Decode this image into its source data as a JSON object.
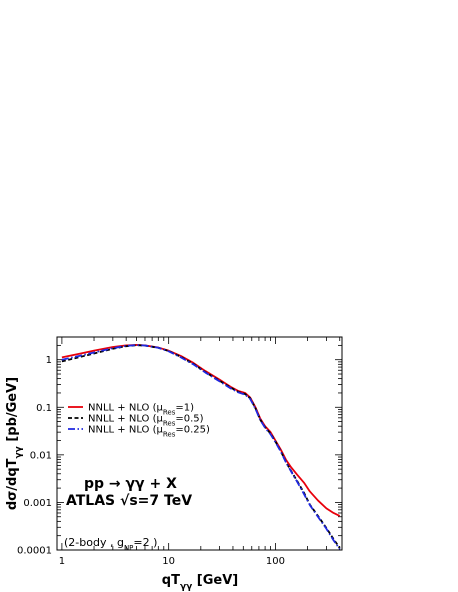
{
  "chart_data": {
    "type": "line",
    "xlabel": "qT<sub>γγ</sub> [GeV]",
    "ylabel": "dσ/dqT<sub>γγ</sub> [pb/GeV]",
    "xscale": "log",
    "yscale": "log",
    "xlim": [
      0.9,
      420
    ],
    "ylim": [
      0.0001,
      3
    ],
    "x_ticks": [
      "1",
      "10",
      "100"
    ],
    "y_ticks": [
      "1",
      "0.1",
      "0.01",
      "0.001",
      "0.0001"
    ],
    "legend_position": "left",
    "annotations": {
      "process": "pp → γγ + X",
      "experiment": "ATLAS  √s=7 TeV",
      "note": "(2-body , g<sub>NP</sub>=2 )"
    },
    "series": [
      {
        "name": "NNLL + NLO (μ<sub>Res</sub>=1)",
        "color": "#e8000b",
        "dash": "solid",
        "points": [
          [
            1,
            1.12
          ],
          [
            1.5,
            1.35
          ],
          [
            2,
            1.55
          ],
          [
            3,
            1.85
          ],
          [
            4,
            2.0
          ],
          [
            5,
            2.05
          ],
          [
            6,
            2.0
          ],
          [
            8,
            1.8
          ],
          [
            10,
            1.55
          ],
          [
            13,
            1.2
          ],
          [
            17,
            0.86
          ],
          [
            22,
            0.58
          ],
          [
            30,
            0.38
          ],
          [
            38,
            0.27
          ],
          [
            45,
            0.22
          ],
          [
            52,
            0.2
          ],
          [
            58,
            0.16
          ],
          [
            65,
            0.1
          ],
          [
            72,
            0.058
          ],
          [
            80,
            0.04
          ],
          [
            90,
            0.03
          ],
          [
            100,
            0.02
          ],
          [
            112,
            0.013
          ],
          [
            125,
            0.008
          ],
          [
            140,
            0.0055
          ],
          [
            160,
            0.0038
          ],
          [
            185,
            0.0026
          ],
          [
            210,
            0.0017
          ],
          [
            250,
            0.0011
          ],
          [
            300,
            0.00075
          ],
          [
            350,
            0.0006
          ],
          [
            400,
            0.00052
          ]
        ]
      },
      {
        "name": "NNLL + NLO (μ<sub>Res</sub>=0.5)",
        "color": "#000000",
        "dash": "dashed",
        "points": [
          [
            1,
            0.92
          ],
          [
            1.5,
            1.15
          ],
          [
            2,
            1.35
          ],
          [
            3,
            1.7
          ],
          [
            4,
            1.92
          ],
          [
            5,
            2.02
          ],
          [
            6,
            1.98
          ],
          [
            8,
            1.78
          ],
          [
            10,
            1.52
          ],
          [
            13,
            1.15
          ],
          [
            17,
            0.82
          ],
          [
            22,
            0.55
          ],
          [
            30,
            0.36
          ],
          [
            38,
            0.26
          ],
          [
            45,
            0.21
          ],
          [
            52,
            0.19
          ],
          [
            58,
            0.155
          ],
          [
            65,
            0.095
          ],
          [
            72,
            0.055
          ],
          [
            80,
            0.038
          ],
          [
            90,
            0.028
          ],
          [
            100,
            0.019
          ],
          [
            112,
            0.012
          ],
          [
            125,
            0.0072
          ],
          [
            140,
            0.0046
          ],
          [
            160,
            0.0028
          ],
          [
            185,
            0.0016
          ],
          [
            210,
            0.0009
          ],
          [
            250,
            0.00052
          ],
          [
            300,
            0.00029
          ],
          [
            350,
            0.00017
          ],
          [
            400,
            0.00011
          ]
        ]
      },
      {
        "name": "NNLL + NLO (μ<sub>Res</sub>=0.25)",
        "color": "#1f28e0",
        "dash": "dashdot",
        "points": [
          [
            1,
            1.0
          ],
          [
            1.5,
            1.22
          ],
          [
            2,
            1.42
          ],
          [
            3,
            1.75
          ],
          [
            4,
            1.95
          ],
          [
            5,
            2.03
          ],
          [
            6,
            1.99
          ],
          [
            8,
            1.78
          ],
          [
            10,
            1.5
          ],
          [
            13,
            1.12
          ],
          [
            17,
            0.8
          ],
          [
            22,
            0.54
          ],
          [
            30,
            0.35
          ],
          [
            38,
            0.25
          ],
          [
            45,
            0.205
          ],
          [
            52,
            0.185
          ],
          [
            58,
            0.15
          ],
          [
            65,
            0.093
          ],
          [
            72,
            0.054
          ],
          [
            80,
            0.037
          ],
          [
            90,
            0.027
          ],
          [
            100,
            0.0185
          ],
          [
            112,
            0.0118
          ],
          [
            125,
            0.0071
          ],
          [
            140,
            0.0045
          ],
          [
            160,
            0.0027
          ],
          [
            185,
            0.0015
          ],
          [
            210,
            0.00088
          ],
          [
            250,
            0.0005
          ],
          [
            300,
            0.00028
          ],
          [
            350,
            0.00016
          ],
          [
            400,
            0.000105
          ]
        ]
      }
    ]
  }
}
